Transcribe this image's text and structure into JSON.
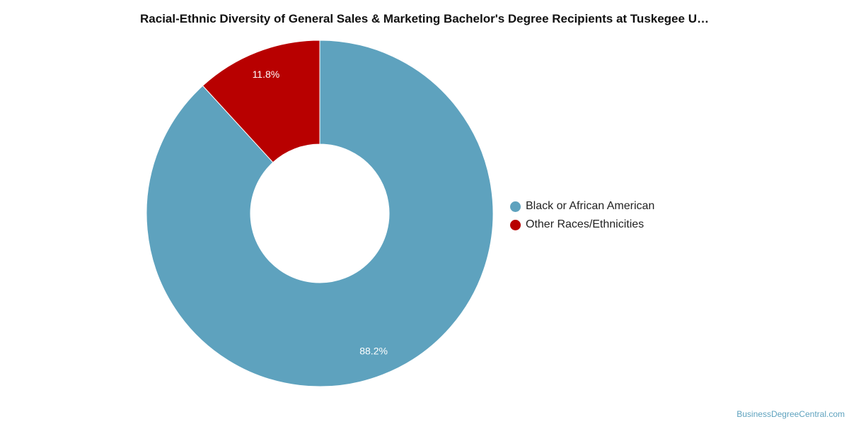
{
  "chart_data": {
    "type": "pie",
    "title": "Racial-Ethnic Diversity of General Sales & Marketing Bachelor's Degree Recipients at Tuskegee U…",
    "donut": true,
    "legend_position": "right",
    "slices": [
      {
        "name": "Black or African American",
        "value": 88.2,
        "label": "88.2%",
        "color": "#5ea2be"
      },
      {
        "name": "Other Races/Ethnicities",
        "value": 11.8,
        "label": "11.8%",
        "color": "#b80000"
      }
    ]
  },
  "credit": "BusinessDegreeCentral.com"
}
